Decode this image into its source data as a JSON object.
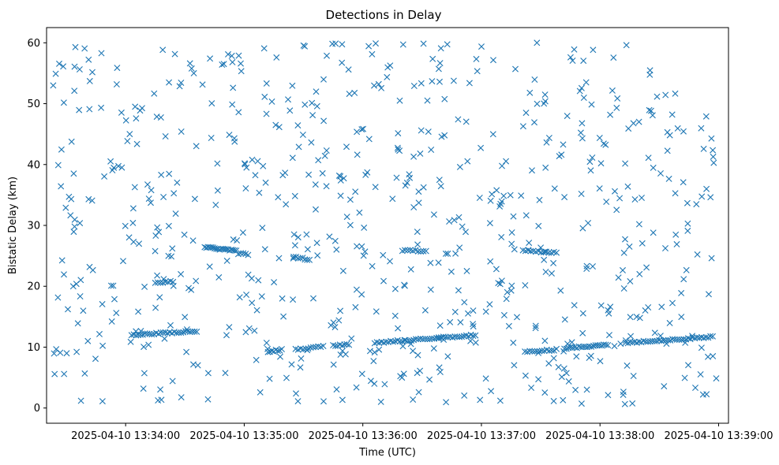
{
  "chart_data": {
    "type": "scatter",
    "title": "Detections in Delay",
    "xlabel": "Time (UTC)",
    "ylabel": "Bistatic Delay (km)",
    "marker": "x",
    "color": "#1f77b4",
    "grid": false,
    "xlim_seconds": [
      -40,
      305
    ],
    "x_origin": "2025-04-10 13:34:00",
    "xticks": [
      {
        "seconds": 0,
        "label": "2025-04-10 13:34:00"
      },
      {
        "seconds": 60,
        "label": "2025-04-10 13:35:00"
      },
      {
        "seconds": 120,
        "label": "2025-04-10 13:36:00"
      },
      {
        "seconds": 180,
        "label": "2025-04-10 13:37:00"
      },
      {
        "seconds": 240,
        "label": "2025-04-10 13:38:00"
      },
      {
        "seconds": 300,
        "label": "2025-04-10 13:39:00"
      }
    ],
    "ylim": [
      -2.5,
      62.5
    ],
    "yticks": [
      0,
      10,
      20,
      30,
      40,
      50,
      60
    ],
    "track_segments": [
      {
        "t_start": 3,
        "t_end": 36,
        "delay_start": 12.0,
        "delay_end": 12.6,
        "points": 30
      },
      {
        "t_start": 72,
        "t_end": 79,
        "delay_start": 9.2,
        "delay_end": 9.6,
        "points": 8
      },
      {
        "t_start": 86,
        "t_end": 100,
        "delay_start": 9.6,
        "delay_end": 10.1,
        "points": 12
      },
      {
        "t_start": 105,
        "t_end": 113,
        "delay_start": 10.2,
        "delay_end": 10.5,
        "points": 8
      },
      {
        "t_start": 126,
        "t_end": 177,
        "delay_start": 10.7,
        "delay_end": 12.0,
        "points": 45
      },
      {
        "t_start": 202,
        "t_end": 218,
        "delay_start": 9.2,
        "delay_end": 9.6,
        "points": 14
      },
      {
        "t_start": 222,
        "t_end": 244,
        "delay_start": 9.8,
        "delay_end": 10.4,
        "points": 22
      },
      {
        "t_start": 253,
        "t_end": 297,
        "delay_start": 10.7,
        "delay_end": 11.7,
        "points": 40
      },
      {
        "t_start": 40,
        "t_end": 56,
        "delay_start": 26.4,
        "delay_end": 25.8,
        "points": 20
      },
      {
        "t_start": 57,
        "t_end": 62,
        "delay_start": 25.4,
        "delay_end": 25.2,
        "points": 5
      },
      {
        "t_start": 140,
        "t_end": 152,
        "delay_start": 25.9,
        "delay_end": 25.8,
        "points": 10
      },
      {
        "t_start": 201,
        "t_end": 218,
        "delay_start": 25.9,
        "delay_end": 25.5,
        "points": 14
      },
      {
        "t_start": 85,
        "t_end": 93,
        "delay_start": 24.8,
        "delay_end": 24.4,
        "points": 8
      },
      {
        "t_start": 15,
        "t_end": 24,
        "delay_start": 20.5,
        "delay_end": 20.8,
        "points": 8
      }
    ],
    "clutter": {
      "t_range": [
        -37,
        299
      ],
      "delay_range": [
        0.5,
        60
      ],
      "points": 700,
      "distribution": "uniform"
    }
  }
}
